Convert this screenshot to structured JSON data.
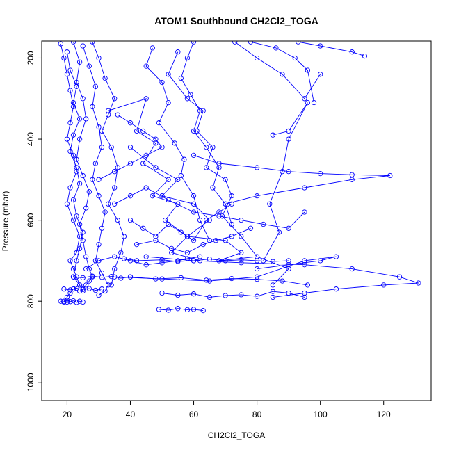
{
  "chart_data": {
    "type": "line",
    "title": "ATOM1 Southbound CH2Cl2_TOGA",
    "xlabel": "CH2Cl2_TOGA",
    "ylabel": "Pressure (mbar)",
    "xlim": [
      12,
      135
    ],
    "ylim": [
      1045,
      158
    ],
    "y_reversed": true,
    "grid": false,
    "legend": "none",
    "marker": "open-circle",
    "color": "#0000ff",
    "x_ticks": [
      20,
      40,
      60,
      80,
      100,
      120
    ],
    "y_ticks": [
      200,
      400,
      600,
      800,
      1000
    ],
    "series": [
      {
        "x": [
          18,
          19,
          20,
          21,
          22,
          21,
          20,
          22,
          23,
          21,
          20,
          22,
          24,
          23,
          21,
          22,
          23,
          24,
          22,
          21,
          20,
          19,
          20
        ],
        "y": [
          165,
          200,
          240,
          280,
          320,
          360,
          400,
          440,
          480,
          520,
          560,
          600,
          640,
          680,
          700,
          720,
          740,
          760,
          770,
          780,
          790,
          800,
          802
        ]
      },
      {
        "x": [
          22,
          24,
          23,
          25,
          26,
          24,
          23,
          25,
          27,
          26,
          24,
          25,
          26,
          27,
          28,
          27,
          26,
          25,
          24
        ],
        "y": [
          160,
          210,
          260,
          300,
          350,
          400,
          450,
          490,
          530,
          570,
          610,
          650,
          690,
          720,
          740,
          750,
          760,
          770,
          775
        ]
      },
      {
        "x": [
          25,
          27,
          29,
          28,
          30,
          31,
          29,
          28,
          30,
          32,
          31,
          30,
          29,
          31,
          33,
          32,
          30
        ],
        "y": [
          170,
          220,
          270,
          320,
          370,
          420,
          460,
          500,
          540,
          580,
          620,
          660,
          700,
          730,
          760,
          775,
          785
        ]
      },
      {
        "x": [
          20,
          21,
          23,
          22,
          24,
          22,
          21,
          23,
          24,
          22,
          23,
          25,
          24,
          23,
          22,
          24,
          25
        ],
        "y": [
          185,
          230,
          270,
          310,
          350,
          390,
          430,
          470,
          510,
          550,
          590,
          630,
          670,
          700,
          740,
          760,
          775
        ]
      },
      {
        "x": [
          28,
          30,
          32,
          35,
          33,
          31,
          34,
          36,
          35,
          33,
          36,
          38,
          37,
          35,
          34
        ],
        "y": [
          160,
          200,
          250,
          300,
          340,
          380,
          420,
          470,
          520,
          560,
          600,
          640,
          680,
          720,
          760
        ]
      },
      {
        "x": [
          33,
          45,
          42,
          48,
          44,
          52,
          47,
          55,
          51,
          58,
          53,
          62
        ],
        "y": [
          330,
          300,
          380,
          410,
          460,
          500,
          540,
          560,
          600,
          640,
          680,
          700
        ]
      },
      {
        "x": [
          40,
          48,
          55,
          50,
          60,
          65,
          58,
          70,
          75,
          68,
          80,
          90,
          85
        ],
        "y": [
          420,
          470,
          500,
          540,
          560,
          600,
          640,
          650,
          680,
          700,
          690,
          720,
          760
        ]
      },
      {
        "x": [
          55,
          52,
          58,
          63,
          61,
          66,
          64,
          70,
          72,
          69,
          75,
          80
        ],
        "y": [
          185,
          240,
          300,
          330,
          380,
          420,
          470,
          500,
          540,
          590,
          640,
          690
        ]
      },
      {
        "x": [
          47,
          45,
          50,
          52,
          49,
          54,
          57,
          56,
          60,
          62,
          65
        ],
        "y": [
          175,
          220,
          260,
          310,
          360,
          410,
          450,
          490,
          540,
          600,
          650
        ]
      },
      {
        "x": [
          60,
          58,
          56,
          59,
          62,
          60,
          64,
          68,
          66,
          70,
          72
        ],
        "y": [
          160,
          200,
          250,
          290,
          330,
          380,
          420,
          470,
          520,
          560,
          610
        ]
      },
      {
        "x": [
          73,
          80,
          88,
          95,
          100
        ],
        "y": [
          160,
          200,
          240,
          300,
          240
        ]
      },
      {
        "x": [
          78,
          86,
          92,
          96,
          98
        ],
        "y": [
          160,
          175,
          200,
          230,
          310
        ]
      },
      {
        "x": [
          93,
          100,
          110,
          114
        ],
        "y": [
          160,
          170,
          185,
          195
        ]
      },
      {
        "x": [
          60,
          68,
          80,
          90,
          100,
          110,
          122,
          110,
          95,
          80,
          70
        ],
        "y": [
          440,
          460,
          470,
          480,
          485,
          488,
          490,
          500,
          520,
          540,
          560
        ]
      },
      {
        "x": [
          85,
          90,
          96,
          90,
          88,
          84,
          87,
          82
        ],
        "y": [
          390,
          380,
          310,
          400,
          480,
          560,
          630,
          700
        ]
      },
      {
        "x": [
          45,
          60,
          75,
          95,
          110,
          125,
          131,
          120,
          105,
          95,
          85
        ],
        "y": [
          690,
          700,
          705,
          710,
          720,
          740,
          755,
          760,
          770,
          780,
          790
        ]
      },
      {
        "x": [
          35,
          50,
          65,
          80,
          95,
          105,
          100,
          90,
          80
        ],
        "y": [
          740,
          745,
          750,
          740,
          700,
          690,
          700,
          710,
          720
        ]
      },
      {
        "x": [
          38,
          42,
          50,
          55,
          60,
          65,
          70,
          75,
          80,
          85,
          90
        ],
        "y": [
          695,
          700,
          698,
          702,
          700,
          696,
          700,
          698,
          700,
          702,
          700
        ]
      },
      {
        "x": [
          40,
          48,
          56,
          64,
          72,
          80,
          88,
          96
        ],
        "y": [
          740,
          745,
          742,
          748,
          744,
          746,
          750,
          760
        ]
      },
      {
        "x": [
          50,
          55,
          60,
          65,
          70,
          75,
          80,
          85,
          90,
          95
        ],
        "y": [
          780,
          785,
          782,
          790,
          786,
          784,
          788,
          776,
          780,
          790
        ]
      },
      {
        "x": [
          49,
          52,
          55,
          58,
          60,
          63
        ],
        "y": [
          820,
          822,
          818,
          821,
          820,
          823
        ]
      },
      {
        "x": [
          40,
          44,
          48,
          52,
          56,
          60,
          64,
          68,
          72
        ],
        "y": [
          600,
          620,
          640,
          610,
          630,
          650,
          600,
          580,
          560
        ]
      },
      {
        "x": [
          35,
          40,
          45,
          52,
          60,
          68,
          75,
          82,
          90,
          95
        ],
        "y": [
          560,
          540,
          520,
          550,
          580,
          590,
          600,
          610,
          620,
          580
        ]
      },
      {
        "x": [
          42,
          48,
          53,
          58,
          63,
          67,
          72,
          78
        ],
        "y": [
          660,
          650,
          670,
          680,
          660,
          650,
          640,
          620
        ]
      },
      {
        "x": [
          30,
          35,
          40,
          45,
          50,
          48,
          44,
          40,
          36
        ],
        "y": [
          500,
          480,
          460,
          440,
          420,
          400,
          380,
          360,
          340
        ]
      },
      {
        "x": [
          18,
          19,
          20,
          21,
          22,
          23,
          24,
          25
        ],
        "y": [
          800,
          802,
          798,
          801,
          799,
          803,
          800,
          802
        ]
      },
      {
        "x": [
          19,
          21,
          23,
          25,
          27,
          29,
          31
        ],
        "y": [
          770,
          772,
          768,
          771,
          769,
          773,
          770
        ]
      },
      {
        "x": [
          22,
          25,
          28,
          31,
          34,
          37,
          40
        ],
        "y": [
          740,
          742,
          738,
          741,
          739,
          743,
          740
        ]
      },
      {
        "x": [
          26,
          30,
          35,
          40,
          45,
          50,
          55,
          58,
          62
        ],
        "y": [
          720,
          700,
          690,
          700,
          710,
          705,
          700,
          695,
          690
        ]
      }
    ]
  }
}
